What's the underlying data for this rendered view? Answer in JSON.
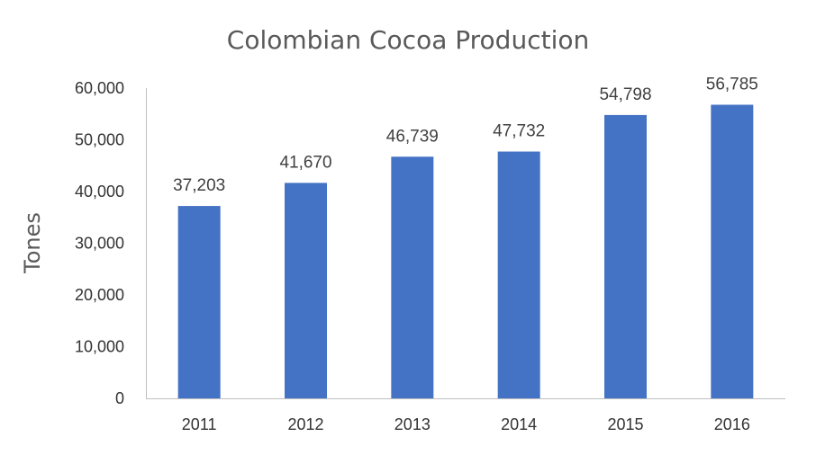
{
  "chart_data": {
    "type": "bar",
    "title": "Colombian Cocoa Production",
    "xlabel": "",
    "ylabel": "Tones",
    "categories": [
      "2011",
      "2012",
      "2013",
      "2014",
      "2015",
      "2016"
    ],
    "values": [
      37203,
      41670,
      46739,
      47732,
      54798,
      56785
    ],
    "data_labels": [
      "37,203",
      "41,670",
      "46,739",
      "47,732",
      "54,798",
      "56,785"
    ],
    "ylim": [
      0,
      60000
    ],
    "yticks": [
      0,
      10000,
      20000,
      30000,
      40000,
      50000,
      60000
    ],
    "ytick_labels": [
      "0",
      "10,000",
      "20,000",
      "30,000",
      "40,000",
      "50,000",
      "60,000"
    ],
    "grid": false,
    "legend": "none",
    "bar_color": "#4472C4"
  }
}
